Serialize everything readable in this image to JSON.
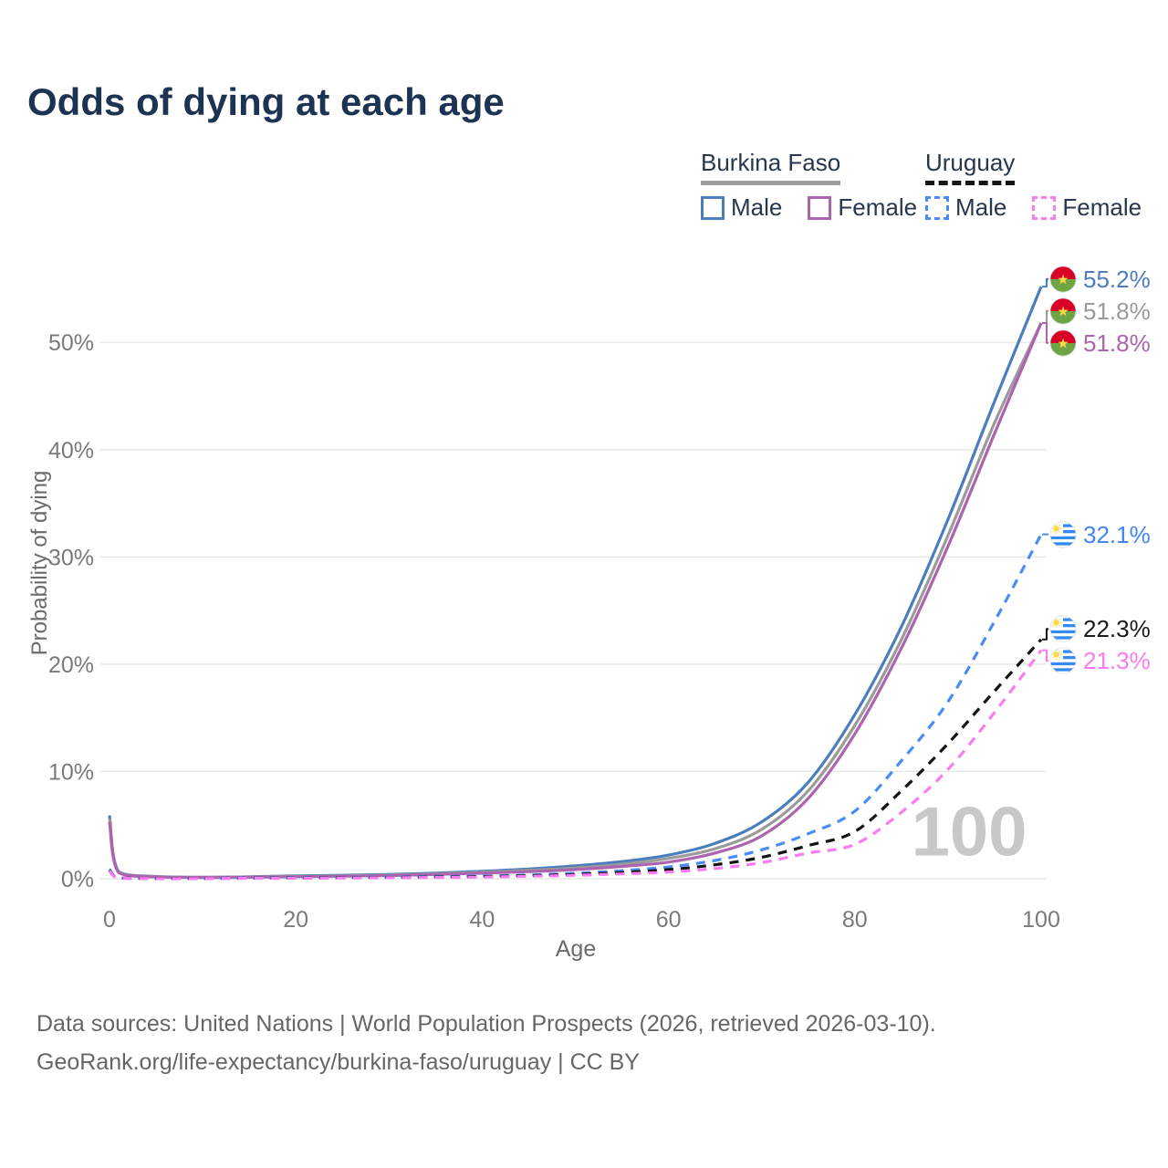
{
  "title": "Odds of dying at each age",
  "watermark_age": "100",
  "legend": {
    "groups": [
      {
        "id": "burkina-faso",
        "label": "Burkina Faso",
        "line_style": "solid",
        "underline_color": "#9e9e9e",
        "items": [
          {
            "id": "male",
            "label": "Male",
            "color": "#4a7ebc",
            "dashed": false
          },
          {
            "id": "female",
            "label": "Female",
            "color": "#ab64ad",
            "dashed": false
          }
        ]
      },
      {
        "id": "uruguay",
        "label": "Uruguay",
        "line_style": "dashed",
        "underline_color": "#141414",
        "items": [
          {
            "id": "male",
            "label": "Male",
            "color": "#4a8cf5",
            "dashed": true
          },
          {
            "id": "female",
            "label": "Female",
            "color": "#fb7bf2",
            "dashed": true
          }
        ]
      }
    ]
  },
  "footer": {
    "line1": "Data sources: United Nations | World Population Prospects (2026, retrieved 2026-03-10).",
    "line2": "GeoRank.org/life-expectancy/burkina-faso/uruguay | CC BY"
  },
  "chart_data": {
    "type": "line",
    "title": "Odds of dying at each age",
    "xlabel": "Age",
    "ylabel": "Probability of dying",
    "xlim": [
      0,
      100
    ],
    "ylim": [
      0,
      56
    ],
    "grid": "horizontal-only",
    "legend_position": "top-right",
    "x_ticks": [
      0,
      20,
      40,
      60,
      80,
      100
    ],
    "y_ticks": [
      {
        "value": 0,
        "label": "0%"
      },
      {
        "value": 10,
        "label": "10%"
      },
      {
        "value": 20,
        "label": "20%"
      },
      {
        "value": 30,
        "label": "30%"
      },
      {
        "value": 40,
        "label": "40%"
      },
      {
        "value": 50,
        "label": "50%"
      }
    ],
    "ages": [
      0,
      1,
      5,
      10,
      15,
      20,
      25,
      30,
      35,
      40,
      45,
      50,
      55,
      60,
      65,
      70,
      75,
      80,
      85,
      90,
      95,
      100
    ],
    "series": [
      {
        "name": "Burkina Faso Male",
        "country": "Burkina Faso",
        "sex": "Male",
        "flag": "burkina-faso",
        "color": "#4a7ebc",
        "label_color": "#4a7ebc",
        "dashed": false,
        "end_label": "55.2%",
        "values": [
          5.9,
          0.65,
          0.2,
          0.14,
          0.18,
          0.26,
          0.32,
          0.4,
          0.52,
          0.7,
          0.9,
          1.2,
          1.6,
          2.2,
          3.3,
          5.3,
          9.0,
          15.3,
          23.5,
          33.5,
          44.5,
          55.2
        ]
      },
      {
        "name": "Burkina Faso Both sexes",
        "country": "Burkina Faso",
        "sex": "Both sexes",
        "flag": "burkina-faso",
        "color": "#9b9b9b",
        "label_color": "#9b9b9b",
        "dashed": false,
        "end_label": "51.8%",
        "values": [
          5.6,
          0.6,
          0.18,
          0.13,
          0.16,
          0.22,
          0.27,
          0.34,
          0.45,
          0.6,
          0.78,
          1.0,
          1.35,
          1.9,
          2.8,
          4.6,
          8.2,
          14.3,
          22.3,
          32.0,
          42.5,
          51.8
        ]
      },
      {
        "name": "Burkina Faso Female",
        "country": "Burkina Faso",
        "sex": "Female",
        "flag": "burkina-faso",
        "color": "#ab64ad",
        "label_color": "#ab64ad",
        "dashed": false,
        "end_label": "51.8%",
        "values": [
          5.3,
          0.55,
          0.17,
          0.12,
          0.14,
          0.19,
          0.24,
          0.3,
          0.4,
          0.52,
          0.66,
          0.85,
          1.15,
          1.55,
          2.4,
          4.0,
          7.5,
          13.5,
          21.5,
          31.0,
          41.5,
          51.8
        ]
      },
      {
        "name": "Uruguay Male",
        "country": "Uruguay",
        "sex": "Male",
        "flag": "uruguay",
        "color": "#4a8cf5",
        "label_color": "#4285f4",
        "dashed": true,
        "end_label": "32.1%",
        "values": [
          0.9,
          0.07,
          0.03,
          0.03,
          0.07,
          0.1,
          0.13,
          0.16,
          0.2,
          0.25,
          0.35,
          0.5,
          0.75,
          1.1,
          1.7,
          2.7,
          4.2,
          6.3,
          11.0,
          16.5,
          24.0,
          32.1
        ]
      },
      {
        "name": "Uruguay Both sexes",
        "country": "Uruguay",
        "sex": "Both sexes",
        "flag": "uruguay",
        "color": "#141414",
        "label_color": "#1a1a1a",
        "dashed": true,
        "end_label": "22.3%",
        "values": [
          0.8,
          0.06,
          0.03,
          0.03,
          0.05,
          0.08,
          0.1,
          0.12,
          0.16,
          0.2,
          0.28,
          0.4,
          0.58,
          0.85,
          1.3,
          2.0,
          3.1,
          4.4,
          8.2,
          12.6,
          17.5,
          22.3
        ]
      },
      {
        "name": "Uruguay Female",
        "country": "Uruguay",
        "sex": "Female",
        "flag": "uruguay",
        "color": "#fb7bf2",
        "label_color": "#fb7bf2",
        "dashed": true,
        "end_label": "21.3%",
        "values": [
          0.75,
          0.06,
          0.02,
          0.02,
          0.04,
          0.05,
          0.07,
          0.09,
          0.12,
          0.15,
          0.23,
          0.32,
          0.45,
          0.62,
          0.95,
          1.5,
          2.4,
          3.2,
          6.2,
          10.2,
          15.5,
          21.3
        ]
      }
    ]
  }
}
